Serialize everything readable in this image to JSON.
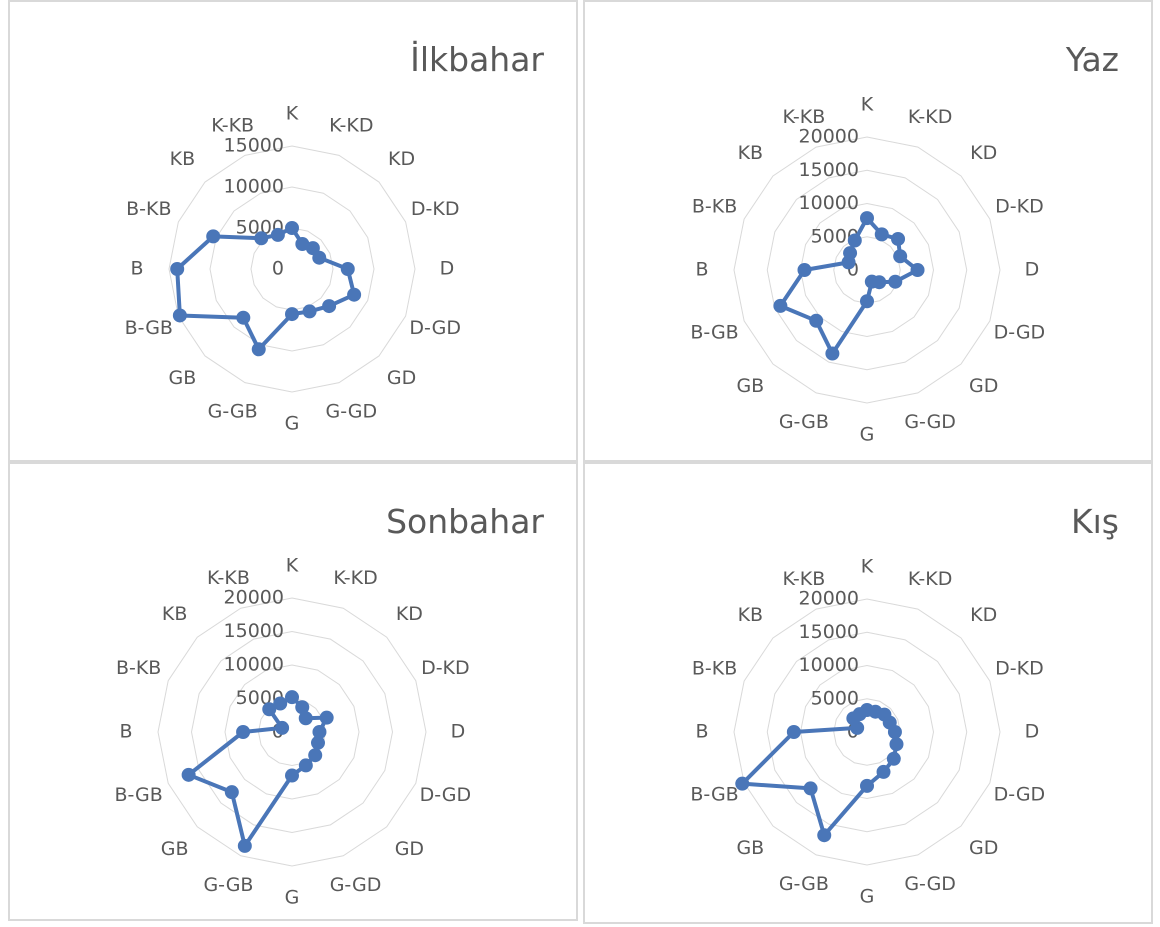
{
  "colors": {
    "series": "#4a76b8",
    "grid": "#d9d9d9",
    "text": "#595959"
  },
  "chart_data": [
    {
      "type": "radar",
      "title": "İlkbahar",
      "categories": [
        "K",
        "K-KD",
        "KD",
        "D-KD",
        "D",
        "D-GD",
        "GD",
        "G-GD",
        "G",
        "G-GB",
        "GB",
        "B-GB",
        "B",
        "B-KB",
        "KB",
        "K-KB"
      ],
      "rticks": [
        0,
        5000,
        10000,
        15000
      ],
      "rmax": 15000,
      "values": [
        5000,
        3300,
        3600,
        3600,
        6800,
        8200,
        6400,
        5600,
        5500,
        10600,
        8400,
        14800,
        14000,
        10400,
        5300,
        4500
      ]
    },
    {
      "type": "radar",
      "title": "Yaz",
      "categories": [
        "K",
        "K-KD",
        "KD",
        "D-KD",
        "D",
        "D-GD",
        "GD",
        "G-GD",
        "G",
        "G-GB",
        "GB",
        "B-GB",
        "B",
        "B-KB",
        "KB",
        "K-KB"
      ],
      "rticks": [
        0,
        5000,
        10000,
        15000,
        20000
      ],
      "rmax": 20000,
      "values": [
        7800,
        5800,
        6600,
        5400,
        7600,
        4600,
        2600,
        1900,
        4700,
        13600,
        10800,
        14100,
        9400,
        3000,
        3600,
        4800
      ]
    },
    {
      "type": "radar",
      "title": "Sonbahar",
      "categories": [
        "K",
        "K-KD",
        "KD",
        "D-KD",
        "D",
        "D-GD",
        "GD",
        "G-GD",
        "G",
        "G-GB",
        "GB",
        "B-GB",
        "B",
        "B-KB",
        "KB",
        "K-KB"
      ],
      "rticks": [
        0,
        5000,
        10000,
        15000,
        20000
      ],
      "rmax": 20000,
      "values": [
        5200,
        4000,
        2900,
        5600,
        4100,
        4200,
        4900,
        5400,
        6500,
        18400,
        12700,
        16700,
        7300,
        1600,
        4800,
        4600
      ]
    },
    {
      "type": "radar",
      "title": "Kış",
      "categories": [
        "K",
        "K-KD",
        "KD",
        "D-KD",
        "D",
        "D-GD",
        "GD",
        "G-GD",
        "G",
        "G-GB",
        "GB",
        "B-GB",
        "B",
        "B-KB",
        "KB",
        "K-KB"
      ],
      "rticks": [
        0,
        5000,
        10000,
        15000,
        20000
      ],
      "rmax": 20000,
      "values": [
        3300,
        3300,
        3700,
        3700,
        4200,
        4800,
        5700,
        6500,
        8100,
        16800,
        12000,
        20300,
        11000,
        1600,
        2900,
        2900
      ]
    }
  ]
}
